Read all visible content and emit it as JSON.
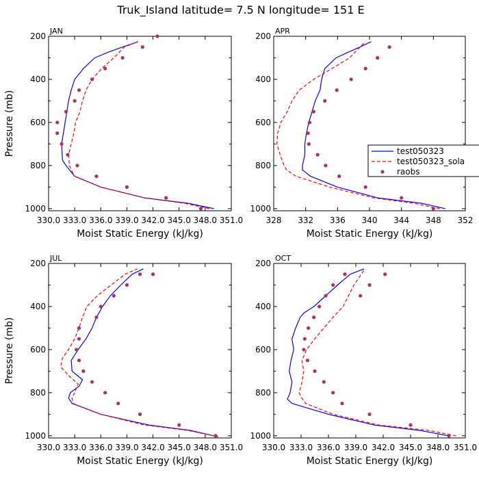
{
  "figure": {
    "title": "Truk_Island  latitude= 7.5 N longitude= 151 E"
  },
  "legend": {
    "entries": [
      "test050323",
      "test050323_sola",
      "raobs"
    ],
    "placement": "right of APR panel"
  },
  "colors": {
    "test": "#0000ff",
    "sola": "#ff0000",
    "raobs": "#b03060",
    "axes": "#000000"
  },
  "chart_data": [
    {
      "type": "line",
      "panel": "JAN",
      "xlabel": "Moist Static Energy (kJ/kg)",
      "ylabel": "Pressure (mb)",
      "xlim": [
        330.0,
        351.0
      ],
      "ylim": [
        1010,
        200
      ],
      "xticks": [
        330.0,
        333.0,
        336.0,
        339.0,
        342.0,
        345.0,
        348.0,
        351.0
      ],
      "xtick_labels": [
        "330.0",
        "333.0",
        "336.0",
        "339.0",
        "342.0",
        "345.0",
        "348.0",
        "351.0"
      ],
      "yticks": [
        200,
        400,
        600,
        800,
        1000
      ],
      "ytick_labels": [
        "200",
        "400",
        "600",
        "800",
        "1000"
      ],
      "series": [
        {
          "name": "test050323",
          "style": "solid",
          "color": "#0000ff",
          "x": [
            349.0,
            346.0,
            341.0,
            336.0,
            333.0,
            332.4,
            332.0,
            331.6,
            331.5,
            331.7,
            331.9,
            332.1,
            332.3,
            332.6,
            333.0,
            334.0,
            335.3,
            336.8,
            338.5,
            340.3
          ],
          "y": [
            1000,
            975,
            950,
            900,
            850,
            820,
            800,
            775,
            700,
            650,
            600,
            550,
            500,
            450,
            400,
            350,
            300,
            275,
            250,
            225
          ]
        },
        {
          "name": "test050323_sola",
          "style": "dashed",
          "color": "#ff0000",
          "x": [
            348.5,
            345.6,
            341.0,
            336.0,
            333.0,
            332.6,
            332.4,
            332.3,
            332.6,
            332.9,
            333.1,
            333.6,
            333.9,
            334.3,
            335.0,
            336.1,
            337.5,
            338.7,
            340.3
          ],
          "y": [
            1000,
            975,
            950,
            900,
            850,
            820,
            800,
            750,
            700,
            650,
            600,
            550,
            500,
            450,
            400,
            350,
            300,
            250,
            225
          ]
        },
        {
          "name": "raobs",
          "style": "markers",
          "color": "#b03060",
          "x": [
            347.5,
            343.5,
            339.0,
            335.5,
            333.3,
            332.2,
            331.5,
            331.0,
            331.0,
            332.0,
            333.0,
            333.5,
            335.0,
            336.5,
            338.5,
            340.8,
            342.5
          ],
          "y": [
            1000,
            950,
            900,
            850,
            800,
            750,
            700,
            650,
            600,
            550,
            500,
            450,
            400,
            350,
            300,
            250,
            200
          ]
        }
      ]
    },
    {
      "type": "line",
      "panel": "APR",
      "xlabel": "Moist Static Energy (kJ/kg)",
      "ylabel": "",
      "xlim": [
        328,
        352
      ],
      "ylim": [
        1010,
        200
      ],
      "xticks": [
        328,
        332,
        336,
        340,
        344,
        348,
        352
      ],
      "xtick_labels": [
        "328",
        "332",
        "336",
        "340",
        "344",
        "348",
        "352"
      ],
      "yticks": [
        200,
        400,
        600,
        800,
        1000
      ],
      "ytick_labels": [
        "200",
        "400",
        "600",
        "800",
        "1000"
      ],
      "series": [
        {
          "name": "test050323",
          "style": "solid",
          "color": "#0000ff",
          "x": [
            349.5,
            346.5,
            341.0,
            336.0,
            332.6,
            331.6,
            331.6,
            331.9,
            331.9,
            332.1,
            332.4,
            332.8,
            333.2,
            333.8,
            334.0,
            334.4,
            335.8,
            337.3,
            338.8,
            340.2
          ],
          "y": [
            1000,
            975,
            950,
            900,
            850,
            820,
            800,
            750,
            700,
            650,
            600,
            550,
            500,
            450,
            400,
            350,
            300,
            275,
            250,
            225
          ]
        },
        {
          "name": "test050323_sola",
          "style": "dashed",
          "color": "#ff0000",
          "x": [
            348.8,
            345.5,
            340.5,
            335.0,
            330.8,
            329.6,
            329.3,
            328.8,
            328.4,
            328.5,
            328.9,
            329.7,
            330.3,
            331.2,
            333.0,
            335.3,
            337.5,
            338.8,
            339.5
          ],
          "y": [
            1000,
            975,
            950,
            900,
            850,
            820,
            800,
            750,
            700,
            650,
            600,
            550,
            500,
            450,
            400,
            350,
            300,
            250,
            225
          ]
        },
        {
          "name": "raobs",
          "style": "markers",
          "color": "#b03060",
          "x": [
            348.0,
            344.0,
            339.5,
            336.2,
            334.5,
            333.5,
            332.4,
            332.3,
            332.5,
            333.0,
            334.4,
            335.9,
            337.7,
            339.5,
            341.0,
            342.5
          ],
          "y": [
            1000,
            950,
            900,
            850,
            800,
            750,
            700,
            650,
            600,
            550,
            500,
            450,
            400,
            350,
            300,
            250
          ]
        }
      ]
    },
    {
      "type": "line",
      "panel": "JUL",
      "xlabel": "Moist Static Energy (kJ/kg)",
      "ylabel": "Pressure (mb)",
      "xlim": [
        330.0,
        351.0
      ],
      "ylim": [
        1010,
        200
      ],
      "xticks": [
        330.0,
        333.0,
        336.0,
        339.0,
        342.0,
        345.0,
        348.0,
        351.0
      ],
      "xtick_labels": [
        "330.0",
        "333.0",
        "336.0",
        "339.0",
        "342.0",
        "345.0",
        "348.0",
        "351.0"
      ],
      "yticks": [
        200,
        400,
        600,
        800,
        1000
      ],
      "ytick_labels": [
        "200",
        "400",
        "600",
        "800",
        "1000"
      ],
      "series": [
        {
          "name": "test050323",
          "style": "solid",
          "color": "#0000ff",
          "x": [
            349.5,
            346.3,
            341.5,
            336.0,
            332.7,
            332.3,
            332.5,
            333.5,
            333.9,
            332.7,
            332.6,
            333.4,
            334.3,
            335.0,
            335.5,
            336.2,
            337.1,
            338.3,
            339.6,
            340.9
          ],
          "y": [
            1005,
            975,
            950,
            900,
            850,
            825,
            800,
            770,
            740,
            700,
            650,
            600,
            550,
            500,
            450,
            400,
            350,
            300,
            250,
            225
          ]
        },
        {
          "name": "test050323_sola",
          "style": "dashed",
          "color": "#ff0000",
          "x": [
            349.0,
            346.0,
            341.0,
            336.0,
            332.8,
            332.7,
            333.0,
            333.4,
            332.3,
            331.4,
            331.6,
            332.3,
            333.0,
            333.5,
            333.9,
            334.4,
            335.6,
            337.2,
            338.8,
            340.2
          ],
          "y": [
            1000,
            975,
            950,
            900,
            850,
            825,
            800,
            760,
            720,
            680,
            640,
            600,
            550,
            500,
            450,
            400,
            350,
            300,
            250,
            225
          ]
        },
        {
          "name": "raobs",
          "style": "markers",
          "color": "#b03060",
          "x": [
            349.2,
            345.0,
            340.5,
            338.0,
            336.5,
            335.0,
            334.0,
            333.5,
            333.2,
            333.5,
            333.5,
            335.5,
            336.0,
            337.5,
            339.0,
            340.5,
            342.0
          ],
          "y": [
            1000,
            950,
            900,
            850,
            800,
            750,
            700,
            650,
            600,
            550,
            500,
            450,
            400,
            350,
            300,
            250,
            250
          ]
        }
      ]
    },
    {
      "type": "line",
      "panel": "OCT",
      "xlabel": "Moist Static Energy (kJ/kg)",
      "ylabel": "",
      "xlim": [
        330.0,
        351.0
      ],
      "ylim": [
        1010,
        200
      ],
      "xticks": [
        330.0,
        333.0,
        336.0,
        339.0,
        342.0,
        345.0,
        348.0,
        351.0
      ],
      "xtick_labels": [
        "330.0",
        "333.0",
        "336.0",
        "339.0",
        "342.0",
        "345.0",
        "348.0",
        "351.0"
      ],
      "yticks": [
        200,
        400,
        600,
        800,
        1000
      ],
      "ytick_labels": [
        "200",
        "400",
        "600",
        "800",
        "1000"
      ],
      "series": [
        {
          "name": "test050323",
          "style": "solid",
          "color": "#0000ff",
          "x": [
            349.2,
            346.0,
            341.0,
            336.0,
            332.0,
            331.5,
            331.8,
            332.0,
            331.7,
            331.9,
            332.2,
            332.0,
            332.4,
            332.9,
            333.3,
            334.4,
            335.7,
            337.0,
            338.4,
            339.9
          ],
          "y": [
            1000,
            975,
            950,
            900,
            850,
            830,
            800,
            750,
            700,
            650,
            600,
            550,
            500,
            450,
            430,
            400,
            350,
            300,
            250,
            225
          ]
        },
        {
          "name": "test050323_sola",
          "style": "dashed",
          "color": "#ff0000",
          "x": [
            350.0,
            347.0,
            341.5,
            336.5,
            333.5,
            333.0,
            332.8,
            333.1,
            333.3,
            333.1,
            333.6,
            334.5,
            335.5,
            336.5,
            337.6,
            338.8,
            340.0
          ],
          "y": [
            1000,
            975,
            950,
            900,
            850,
            820,
            800,
            750,
            700,
            650,
            600,
            550,
            500,
            450,
            400,
            300,
            225
          ]
        },
        {
          "name": "raobs",
          "style": "markers",
          "color": "#b03060",
          "x": [
            349.2,
            345.0,
            340.5,
            337.5,
            336.5,
            335.5,
            334.5,
            333.7,
            333.3,
            333.4,
            333.8,
            334.4,
            335.0,
            335.7,
            336.5,
            337.8,
            339.5,
            340.5,
            342.2
          ],
          "y": [
            1000,
            950,
            900,
            850,
            800,
            750,
            700,
            650,
            600,
            550,
            500,
            450,
            400,
            350,
            300,
            250,
            350,
            300,
            250
          ]
        }
      ]
    }
  ]
}
